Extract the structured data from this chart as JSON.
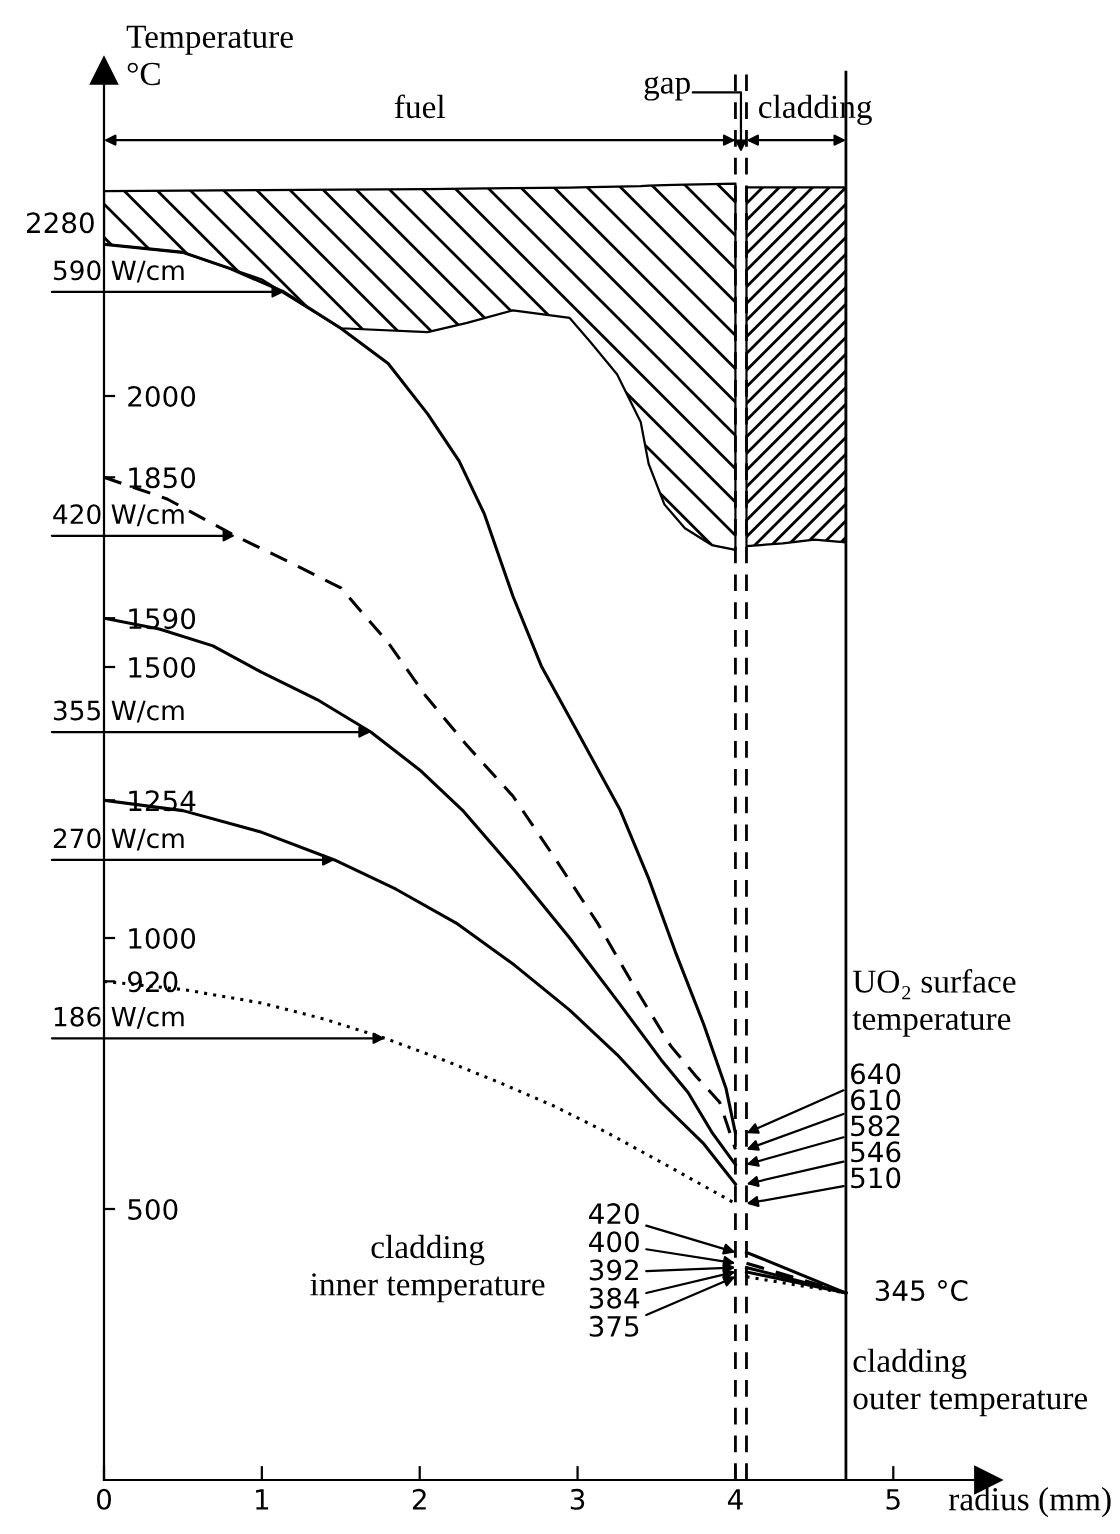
{
  "chart_data": {
    "type": "line",
    "xlabel": "radius (mm)",
    "ylabel": "Temperature\n°C",
    "xlim": [
      0,
      5.6
    ],
    "ylim": [
      0,
      2600
    ],
    "xticks": [
      0,
      1,
      2,
      3,
      4,
      5
    ],
    "yticks": [
      500,
      920,
      1000,
      1254,
      1500,
      1590,
      1850,
      2000
    ],
    "grid": false,
    "legend": false,
    "marker": "none",
    "series": [
      {
        "color": "#000000",
        "line_style": "solid",
        "x": [
          0,
          0.5,
          0.8,
          1.14,
          1.5,
          1.8,
          2.05,
          2.25,
          2.41,
          2.59,
          2.77,
          3.0,
          3.27,
          3.45,
          3.62,
          3.8,
          3.94,
          4.0,
          null,
          4.07,
          4.7
        ],
        "values": [
          2280,
          2265,
          2235,
          2192,
          2125,
          2060,
          1967,
          1880,
          1782,
          1631,
          1502,
          1380,
          1236,
          1110,
          974,
          840,
          723,
          640,
          null,
          420,
          345
        ]
      },
      {
        "color": "#000000",
        "line_style": "dashed",
        "x": [
          0,
          0.4,
          0.83,
          1.2,
          1.5,
          1.8,
          2.04,
          2.3,
          2.59,
          2.85,
          3.13,
          3.35,
          3.59,
          3.75,
          3.9,
          4.0,
          null,
          4.07,
          4.7
        ],
        "values": [
          1850,
          1810,
          1742,
          1690,
          1646,
          1545,
          1446,
          1355,
          1262,
          1150,
          1026,
          915,
          801,
          745,
          697,
          610,
          null,
          400,
          345
        ]
      },
      {
        "color": "#000000",
        "line_style": "solid",
        "x": [
          0,
          0.35,
          0.69,
          1.0,
          1.35,
          1.69,
          2.0,
          2.27,
          2.6,
          2.95,
          3.25,
          3.53,
          3.7,
          3.85,
          4.0,
          null,
          4.07,
          4.7
        ],
        "values": [
          1590,
          1570,
          1539,
          1490,
          1440,
          1380,
          1310,
          1236,
          1125,
          1000,
          885,
          775,
          715,
          642,
          582,
          null,
          392,
          345
        ]
      },
      {
        "color": "#000000",
        "line_style": "solid",
        "x": [
          0,
          0.5,
          1.0,
          1.46,
          1.85,
          2.24,
          2.6,
          2.95,
          3.25,
          3.53,
          3.8,
          4.0,
          null,
          4.07,
          4.7
        ],
        "values": [
          1254,
          1235,
          1195,
          1144,
          1090,
          1026,
          950,
          867,
          785,
          697,
          620,
          546,
          null,
          384,
          345
        ]
      },
      {
        "color": "#000000",
        "line_style": "dotted",
        "x": [
          0,
          0.5,
          1.0,
          1.4,
          1.78,
          2.15,
          2.5,
          2.85,
          3.18,
          3.6,
          4.0,
          null,
          4.07,
          4.7
        ],
        "values": [
          920,
          905,
          880,
          850,
          815,
          775,
          734,
          690,
          642,
          575,
          510,
          null,
          375,
          345
        ]
      }
    ],
    "ref_lines": [
      {
        "axis": "x",
        "value": 4.0,
        "color": "#000000",
        "line_style": "dashed"
      },
      {
        "axis": "x",
        "value": 4.07,
        "color": "#000000",
        "line_style": "dashed"
      },
      {
        "axis": "x",
        "value": 4.7,
        "color": "#000000",
        "line_style": "solid"
      }
    ],
    "annotations": [
      "fuel",
      {
        "text": "gap",
        "x": 4.035,
        "y": 2450
      },
      "cladding",
      "UO₂ surface temperature",
      "cladding\ninner temperature",
      "cladding\nouter temperature",
      {
        "text": "2280",
        "x": 0,
        "y": 2280
      },
      {
        "text": "590 W/cm",
        "x": 1.14,
        "y": 2192
      },
      {
        "text": "420 W/cm",
        "x": 0.83,
        "y": 1742
      },
      {
        "text": "355 W/cm",
        "x": 1.69,
        "y": 1380
      },
      {
        "text": "270 W/cm",
        "x": 1.46,
        "y": 1144
      },
      {
        "text": "186 W/cm",
        "x": 1.78,
        "y": 815
      },
      {
        "text": "640",
        "x": 4.0,
        "y": 640
      },
      {
        "text": "610",
        "x": 4.0,
        "y": 610
      },
      {
        "text": "582",
        "x": 4.0,
        "y": 582
      },
      {
        "text": "546",
        "x": 4.0,
        "y": 546
      },
      {
        "text": "510",
        "x": 4.0,
        "y": 510
      },
      {
        "text": "420",
        "x": 4.07,
        "y": 420
      },
      {
        "text": "400",
        "x": 4.07,
        "y": 400
      },
      {
        "text": "392",
        "x": 4.07,
        "y": 392
      },
      {
        "text": "384",
        "x": 4.07,
        "y": 384
      },
      {
        "text": "375",
        "x": 4.07,
        "y": 375
      },
      {
        "text": "345 °C",
        "x": 4.7,
        "y": 345
      }
    ]
  }
}
